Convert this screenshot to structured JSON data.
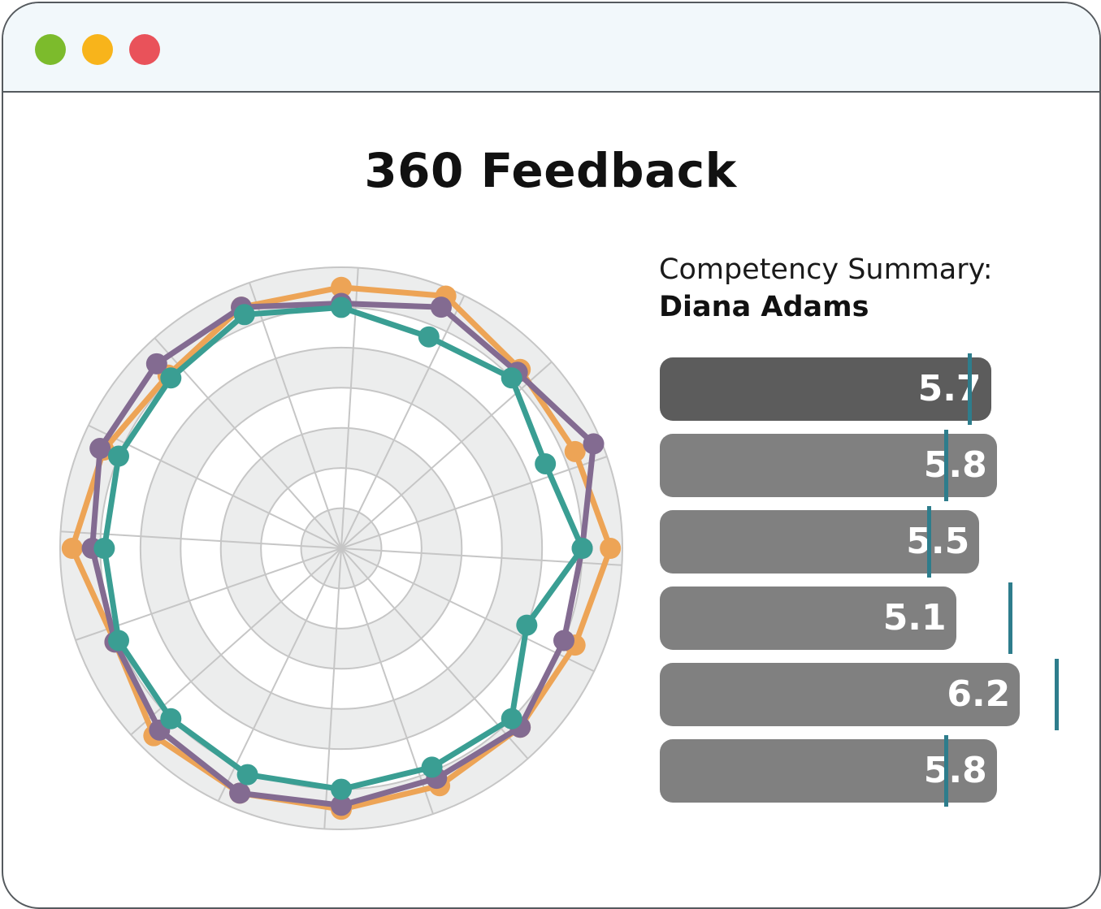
{
  "window": {
    "controls": [
      {
        "name": "maximize-button",
        "color": "#7cbb2c"
      },
      {
        "name": "minimize-button",
        "color": "#f8b41b"
      },
      {
        "name": "close-button",
        "color": "#e9525a"
      }
    ]
  },
  "page": {
    "title": "360 Feedback"
  },
  "summary": {
    "label": "Competency Summary:",
    "name": "Diana Adams",
    "highlight_color": "#5c5c5c",
    "bar_color": "#808080",
    "marker_color": "#2e7d8c",
    "bars": [
      {
        "value": "5.7",
        "score": 5.7,
        "benchmark": 5.3,
        "highlighted": true
      },
      {
        "value": "5.8",
        "score": 5.8,
        "benchmark": 4.9,
        "highlighted": false
      },
      {
        "value": "5.5",
        "score": 5.5,
        "benchmark": 4.6,
        "highlighted": false
      },
      {
        "value": "5.1",
        "score": 5.1,
        "benchmark": 6.0,
        "highlighted": false
      },
      {
        "value": "6.2",
        "score": 6.2,
        "benchmark": 6.8,
        "highlighted": false
      },
      {
        "value": "5.8",
        "score": 5.8,
        "benchmark": 4.9,
        "highlighted": false
      }
    ]
  },
  "chart_data": {
    "type": "radar",
    "axes": 16,
    "rings": 7,
    "max": 7,
    "grid": true,
    "series": [
      {
        "color": "#eda456",
        "values": [
          6.5,
          6.8,
          6.3,
          6.3,
          6.7,
          6.3,
          6.3,
          6.4,
          6.5,
          6.6,
          6.6,
          6.1,
          6.7,
          6.4,
          6.1,
          6.5
        ]
      },
      {
        "color": "#836b91",
        "values": [
          6.1,
          6.5,
          6.2,
          6.8,
          6.0,
          6.0,
          6.3,
          6.2,
          6.4,
          6.6,
          6.4,
          6.1,
          6.2,
          6.5,
          6.5,
          6.5
        ]
      },
      {
        "color": "#3a9e93",
        "values": [
          6.0,
          5.7,
          6.0,
          5.5,
          6.0,
          5.0,
          6.0,
          5.9,
          6.0,
          6.1,
          6.0,
          6.0,
          5.9,
          6.0,
          6.0,
          6.3
        ]
      }
    ]
  }
}
